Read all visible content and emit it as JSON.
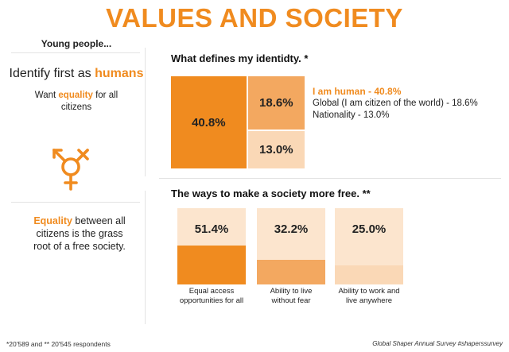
{
  "title": "VALUES AND SOCIETY",
  "colors": {
    "accent": "#F08B1F",
    "mid": "#F3A860",
    "light": "#FAD8B6",
    "lightest": "#FCE5CE",
    "text": "#222222",
    "rule": "#E3E3E3"
  },
  "left_panel": {
    "heading": "Young people...",
    "identify_prefix": "Identify first as",
    "identify_highlight": "humans",
    "want_prefix": "Want",
    "want_highlight": "equality",
    "want_suffix_1": "for all",
    "want_suffix_2": "citizens",
    "gender_symbol_icon": "gender-symbol-icon",
    "bottom_highlight": "Equality",
    "bottom_line_1": "between all",
    "bottom_line_2": "citizens is the grass",
    "bottom_line_3": "root of a free society."
  },
  "chart_data": [
    {
      "type": "treemap",
      "title": "What defines my identidty. *",
      "categories": [
        "I am human",
        "Global (I am citizen of the world)",
        "Nationality"
      ],
      "values": [
        40.8,
        18.6,
        13.0
      ],
      "value_labels": [
        "40.8%",
        "18.6%",
        "13.0%"
      ],
      "legend": [
        "I am human - 40.8%",
        "Global (I am citizen of the world) - 18.6%",
        "Nationality - 13.0%"
      ]
    },
    {
      "type": "bar",
      "title": "The ways to make a society more free. **",
      "categories": [
        "Equal access opportunities for all",
        "Ability to live without fear",
        "Ability to work and live anywhere"
      ],
      "values": [
        51.4,
        32.2,
        25.0
      ],
      "value_labels": [
        "51.4%",
        "32.2%",
        "25.0%"
      ],
      "label_lines": [
        [
          "Equal access",
          "opportunities for all"
        ],
        [
          "Ability to live",
          "without fear"
        ],
        [
          "Ability to work and",
          "live anywhere"
        ]
      ],
      "ylim": [
        0,
        100
      ]
    }
  ],
  "footer": {
    "respondents": "*20'589 and  ** 20'545 respondents",
    "source": "Global Shaper Annual Survey #shaperssurvey"
  }
}
